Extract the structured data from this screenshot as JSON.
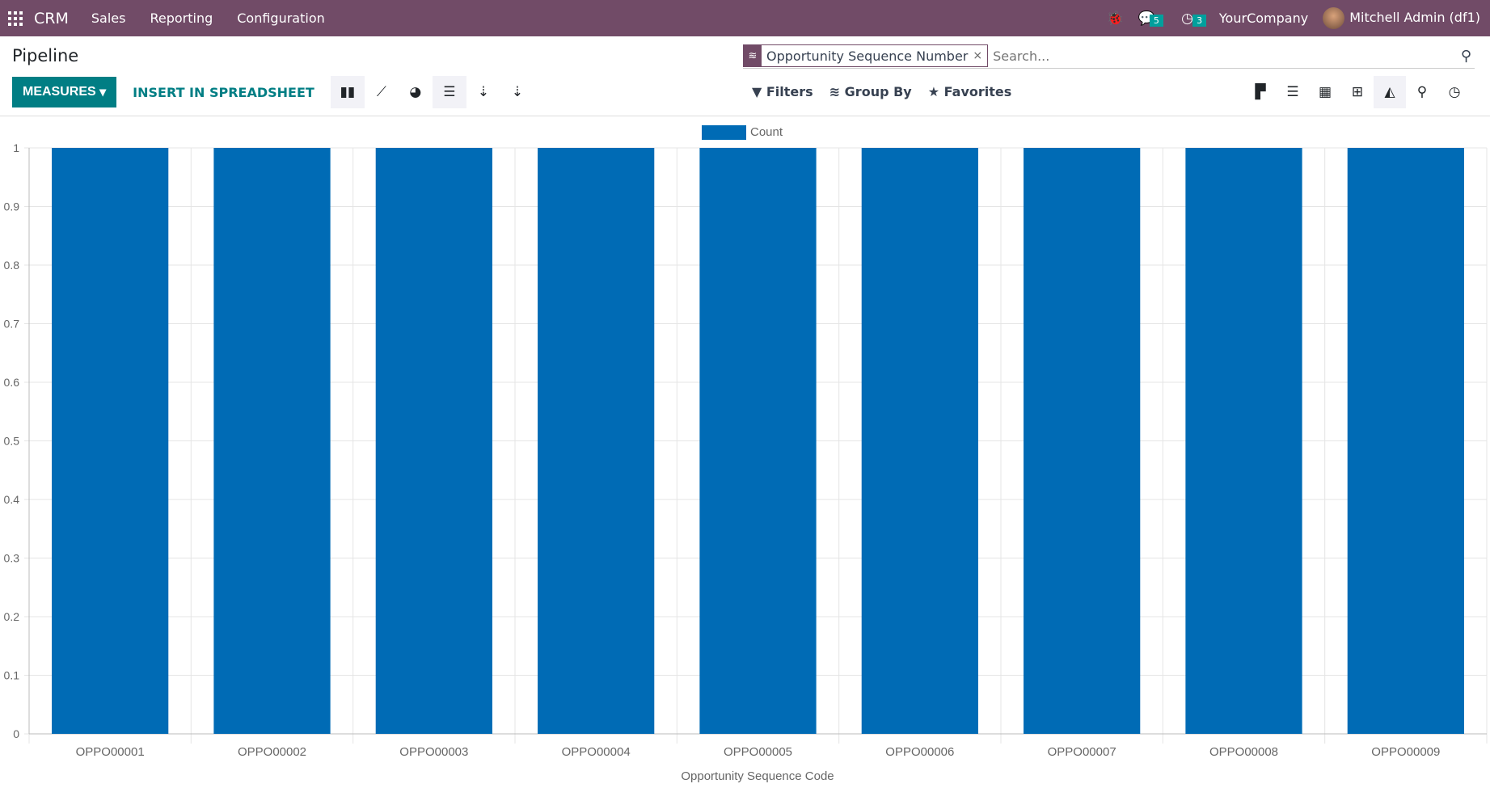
{
  "navbar": {
    "app": "CRM",
    "menus": [
      "Sales",
      "Reporting",
      "Configuration"
    ],
    "messages_count": "5",
    "activities_count": "3",
    "company": "YourCompany",
    "user": "Mitchell Admin (df1)"
  },
  "page": {
    "title": "Pipeline"
  },
  "search": {
    "facet": "Opportunity Sequence Number",
    "facet_close": "×",
    "placeholder": "Search..."
  },
  "toolbar": {
    "measures": "MEASURES",
    "insert": "INSERT IN SPREADSHEET",
    "filters": "Filters",
    "group_by": "Group By",
    "favorites": "Favorites"
  },
  "colors": {
    "navbar": "#714B67",
    "accent": "#017E84",
    "bar": "#006BB5"
  },
  "chart_data": {
    "type": "bar",
    "categories": [
      "OPPO00001",
      "OPPO00002",
      "OPPO00003",
      "OPPO00004",
      "OPPO00005",
      "OPPO00006",
      "OPPO00007",
      "OPPO00008",
      "OPPO00009"
    ],
    "series": [
      {
        "name": "Count",
        "values": [
          1,
          1,
          1,
          1,
          1,
          1,
          1,
          1,
          1
        ]
      }
    ],
    "xlabel": "Opportunity Sequence Code",
    "ylabel": "",
    "ylim": [
      0,
      1
    ],
    "yticks": [
      "0",
      "0.1",
      "0.2",
      "0.3",
      "0.4",
      "0.5",
      "0.6",
      "0.7",
      "0.8",
      "0.9",
      "1"
    ],
    "grid": true,
    "legend": "top"
  }
}
